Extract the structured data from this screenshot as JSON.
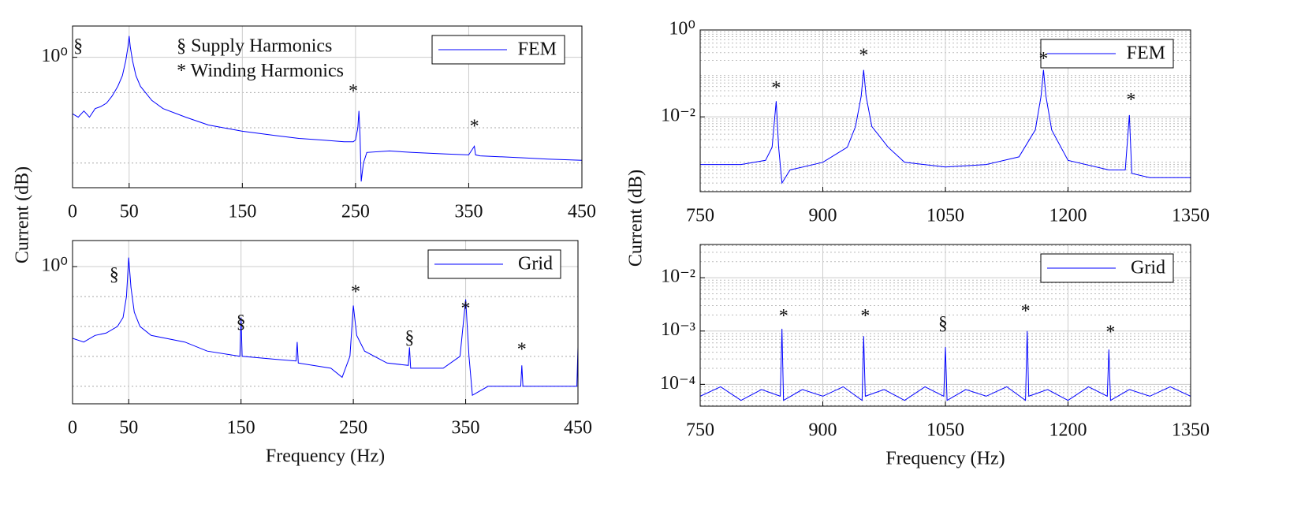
{
  "chart_data": [
    {
      "type": "line",
      "ylabel": "Current (dB)",
      "log_y": true,
      "legend": "upper right",
      "xlim": [
        0,
        450
      ],
      "xticks": [
        0,
        50,
        150,
        250,
        350,
        450
      ],
      "ylim": [
        0.0002,
        7.7
      ],
      "yticks": [
        {
          "value": 1,
          "label": "10⁰"
        }
      ],
      "ygrid": [
        0.1,
        0.01,
        0.001
      ],
      "x": [
        0,
        5,
        10,
        15,
        20,
        25,
        30,
        35,
        40,
        44,
        47,
        49,
        50,
        51,
        53,
        56,
        60,
        70,
        80,
        100,
        120,
        150,
        180,
        200,
        220,
        240,
        248,
        250,
        252,
        253,
        254,
        255,
        257,
        260,
        280,
        300,
        330,
        350,
        355,
        356,
        360,
        400,
        420,
        450
      ],
      "series": [
        {
          "name": "FEM",
          "color": "#0000ff",
          "values": [
            0.025,
            0.02,
            0.03,
            0.02,
            0.035,
            0.04,
            0.05,
            0.08,
            0.15,
            0.3,
            0.8,
            2,
            4,
            2,
            0.8,
            0.3,
            0.15,
            0.06,
            0.035,
            0.02,
            0.012,
            0.008,
            0.006,
            0.005,
            0.0045,
            0.004,
            0.004,
            0.0045,
            0.01,
            0.03,
            0.006,
            0.0003,
            0.001,
            0.002,
            0.0022,
            0.002,
            0.0018,
            0.0017,
            0.003,
            0.0017,
            0.0016,
            0.0014,
            0.0013,
            0.0012
          ]
        }
      ],
      "annotations": [
        {
          "text": "§",
          "x": 5,
          "y": 1.9
        },
        {
          "text": "*",
          "x": 248,
          "y": 0.1
        },
        {
          "text": "*",
          "x": 355,
          "y": 0.01
        },
        {
          "text": "§  Supply Harmonics",
          "x": 92,
          "y": 1.9
        },
        {
          "text": "*  Winding Harmonics",
          "x": 92,
          "y": 0.38
        }
      ]
    },
    {
      "type": "line",
      "xlabel": "Frequency (Hz)",
      "log_y": true,
      "legend": "upper right",
      "xlim": [
        0,
        450
      ],
      "xticks": [
        0,
        50,
        150,
        250,
        350,
        450
      ],
      "ylim": [
        2.6e-05,
        7.4
      ],
      "yticks": [
        {
          "value": 1,
          "label": "10⁰"
        }
      ],
      "ygrid": [
        0.1,
        0.01,
        0.001,
        0.0001
      ],
      "x": [
        0,
        10,
        20,
        30,
        40,
        45,
        48,
        50,
        52,
        55,
        60,
        70,
        100,
        120,
        149,
        150,
        151,
        180,
        199,
        200,
        201,
        230,
        240,
        247,
        250,
        253,
        260,
        280,
        299,
        300,
        301,
        330,
        345,
        350,
        353,
        356,
        370,
        399,
        400,
        401,
        430,
        449,
        450
      ],
      "series": [
        {
          "name": "Grid",
          "color": "#0000ff",
          "values": [
            0.004,
            0.003,
            0.005,
            0.006,
            0.01,
            0.02,
            0.1,
            2,
            0.2,
            0.03,
            0.01,
            0.005,
            0.003,
            0.0015,
            0.001,
            0.02,
            0.001,
            0.0008,
            0.0007,
            0.003,
            0.0006,
            0.0004,
            0.0002,
            0.001,
            0.05,
            0.005,
            0.0015,
            0.0006,
            0.0005,
            0.002,
            0.0004,
            0.0004,
            0.001,
            0.08,
            0.001,
            5e-05,
            0.0001,
            0.0001,
            0.0005,
            0.0001,
            0.0001,
            0.0001,
            0.002
          ]
        }
      ],
      "annotations": [
        {
          "text": "§",
          "x": 37,
          "y": 0.48
        },
        {
          "text": "§",
          "x": 150,
          "y": 0.0127
        },
        {
          "text": "*",
          "x": 252,
          "y": 0.128
        },
        {
          "text": "§",
          "x": 300,
          "y": 0.0038
        },
        {
          "text": "*",
          "x": 350,
          "y": 0.036
        },
        {
          "text": "*",
          "x": 400,
          "y": 0.0015
        }
      ]
    },
    {
      "type": "line",
      "ylabel": "Current (dB)",
      "log_y": true,
      "minor_grid": true,
      "legend": "upper right",
      "xlim": [
        750,
        1350
      ],
      "xticks": [
        750,
        900,
        1050,
        1200,
        1350
      ],
      "ylim": [
        0.00019,
        1
      ],
      "yticks": [
        {
          "value": 1,
          "label": "10⁰"
        },
        {
          "value": 0.01,
          "label": "10⁻²"
        }
      ],
      "x": [
        750,
        800,
        830,
        838,
        843,
        846,
        850,
        860,
        900,
        930,
        940,
        947,
        950,
        953,
        960,
        980,
        1000,
        1050,
        1100,
        1140,
        1160,
        1167,
        1170,
        1173,
        1180,
        1200,
        1250,
        1270,
        1275,
        1278,
        1300,
        1350
      ],
      "series": [
        {
          "name": "FEM",
          "color": "#0000ff",
          "values": [
            0.0008,
            0.0008,
            0.001,
            0.002,
            0.023,
            0.002,
            0.0003,
            0.0006,
            0.0009,
            0.002,
            0.006,
            0.03,
            0.12,
            0.03,
            0.006,
            0.002,
            0.0009,
            0.0007,
            0.0008,
            0.0012,
            0.005,
            0.03,
            0.12,
            0.03,
            0.005,
            0.001,
            0.0006,
            0.0006,
            0.011,
            0.0005,
            0.0004,
            0.0004
          ]
        }
      ],
      "annotations": [
        {
          "text": "*",
          "x": 843,
          "y": 0.043
        },
        {
          "text": "*",
          "x": 950,
          "y": 0.24
        },
        {
          "text": "*",
          "x": 1170,
          "y": 0.2
        },
        {
          "text": "*",
          "x": 1277,
          "y": 0.023
        }
      ]
    },
    {
      "type": "line",
      "xlabel": "Frequency (Hz)",
      "log_y": true,
      "minor_grid": true,
      "legend": "upper right",
      "xlim": [
        750,
        1350
      ],
      "xticks": [
        750,
        900,
        1050,
        1200,
        1350
      ],
      "ylim": [
        3.9e-05,
        0.042
      ],
      "yticks": [
        {
          "value": 0.01,
          "label": "10⁻²"
        },
        {
          "value": 0.001,
          "label": "10⁻³"
        },
        {
          "value": 0.0001,
          "label": "10⁻⁴"
        }
      ],
      "x": [
        750,
        775,
        800,
        825,
        848,
        850,
        852,
        875,
        900,
        925,
        948,
        950,
        952,
        975,
        1000,
        1025,
        1048,
        1050,
        1052,
        1075,
        1100,
        1125,
        1148,
        1150,
        1152,
        1175,
        1200,
        1225,
        1248,
        1250,
        1252,
        1275,
        1300,
        1325,
        1350
      ],
      "series": [
        {
          "name": "Grid",
          "color": "#0000ff",
          "values": [
            6e-05,
            9e-05,
            5e-05,
            8e-05,
            6e-05,
            0.0011,
            5e-05,
            8e-05,
            6e-05,
            9e-05,
            5e-05,
            0.0008,
            6e-05,
            8e-05,
            5e-05,
            9e-05,
            6e-05,
            0.0005,
            5e-05,
            8e-05,
            6e-05,
            9e-05,
            5e-05,
            0.001,
            6e-05,
            8e-05,
            5e-05,
            9e-05,
            6e-05,
            0.00045,
            5e-05,
            8e-05,
            6e-05,
            9e-05,
            6e-05
          ]
        }
      ],
      "annotations": [
        {
          "text": "*",
          "x": 852,
          "y": 0.0018
        },
        {
          "text": "*",
          "x": 952,
          "y": 0.0018
        },
        {
          "text": "§",
          "x": 1047,
          "y": 0.0013
        },
        {
          "text": "*",
          "x": 1148,
          "y": 0.0022
        },
        {
          "text": "*",
          "x": 1252,
          "y": 0.0009
        }
      ]
    }
  ]
}
